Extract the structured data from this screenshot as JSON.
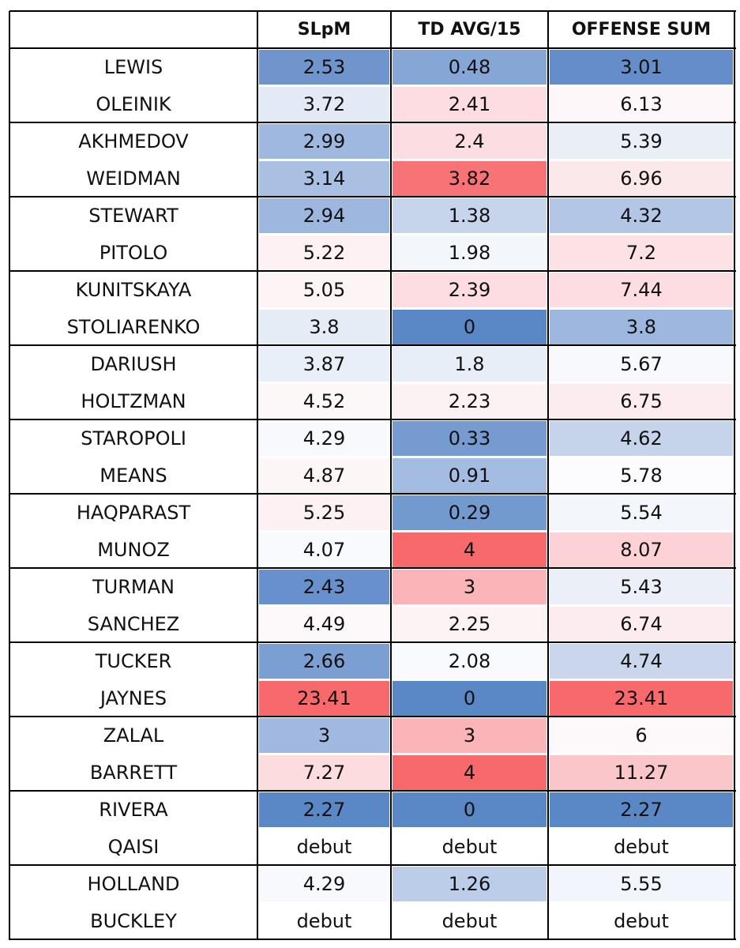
{
  "table": {
    "header": [
      "SLpM",
      "TD AVG/15",
      "OFFENSE SUM"
    ],
    "rows": [
      {
        "name": "LEWIS",
        "cells": [
          2.53,
          0.48,
          3.01
        ],
        "colors": [
          "#6f95cc",
          "#86a6d6",
          "#658dc9"
        ]
      },
      {
        "name": "OLEINIK",
        "cells": [
          3.72,
          2.41,
          6.13
        ],
        "colors": [
          "#e3eaf5",
          "#fddde2",
          "#fdf7f9"
        ]
      },
      {
        "name": "AKHMEDOV",
        "cells": [
          2.99,
          2.4,
          5.39
        ],
        "colors": [
          "#9fb8e0",
          "#fcdde1",
          "#e9eef7"
        ]
      },
      {
        "name": "WEIDMAN",
        "cells": [
          3.14,
          3.82,
          6.96
        ],
        "colors": [
          "#a9c0e2",
          "#f87376",
          "#fbe8eb"
        ]
      },
      {
        "name": "STEWART",
        "cells": [
          2.94,
          1.38,
          4.32
        ],
        "colors": [
          "#9db7df",
          "#c6d4ec",
          "#b3c6e5"
        ]
      },
      {
        "name": "PITOLO",
        "cells": [
          5.22,
          1.98,
          7.2
        ],
        "colors": [
          "#fdf1f3",
          "#f3f6fb",
          "#fce2e5"
        ]
      },
      {
        "name": "KUNITSKAYA",
        "cells": [
          5.05,
          2.39,
          7.44
        ],
        "colors": [
          "#fdf4f6",
          "#fddde1",
          "#fddde1"
        ]
      },
      {
        "name": "STOLIARENKO",
        "cells": [
          3.8,
          0,
          3.8
        ],
        "colors": [
          "#e5ecf6",
          "#5a87c6",
          "#9eb7df"
        ]
      },
      {
        "name": "DARIUSH",
        "cells": [
          3.87,
          1.8,
          5.67
        ],
        "colors": [
          "#e9eff8",
          "#e8eef7",
          "#f8f9fc"
        ]
      },
      {
        "name": "HOLTZMAN",
        "cells": [
          4.52,
          2.23,
          6.75
        ],
        "colors": [
          "#fcf7f9",
          "#fcf1f3",
          "#fcecef"
        ]
      },
      {
        "name": "STAROPOLI",
        "cells": [
          4.29,
          0.33,
          4.62
        ],
        "colors": [
          "#f8f9fc",
          "#759bd0",
          "#c5d3eb"
        ]
      },
      {
        "name": "MEANS",
        "cells": [
          4.87,
          0.91,
          5.78
        ],
        "colors": [
          "#fdf6f7",
          "#a4bce1",
          "#fcfcfe"
        ]
      },
      {
        "name": "HAQPARAST",
        "cells": [
          5.25,
          0.29,
          5.54
        ],
        "colors": [
          "#fdf1f3",
          "#729acf",
          "#f3f6fb"
        ]
      },
      {
        "name": "MUNOZ",
        "cells": [
          4.07,
          4,
          8.07
        ],
        "colors": [
          "#f9fafd",
          "#f8696b",
          "#fcd2d6"
        ]
      },
      {
        "name": "TURMAN",
        "cells": [
          2.43,
          3,
          5.43
        ],
        "colors": [
          "#6890cc",
          "#fbb4b8",
          "#eaeff8"
        ]
      },
      {
        "name": "SANCHEZ",
        "cells": [
          4.49,
          2.25,
          6.74
        ],
        "colors": [
          "#fdf8f9",
          "#fdf2f4",
          "#fdecef"
        ]
      },
      {
        "name": "TUCKER",
        "cells": [
          2.66,
          2.08,
          4.74
        ],
        "colors": [
          "#7c9fd3",
          "#f9fafd",
          "#c9d6ec"
        ]
      },
      {
        "name": "JAYNES",
        "cells": [
          23.41,
          0,
          23.41
        ],
        "colors": [
          "#f8696b",
          "#5a87c6",
          "#f8696b"
        ]
      },
      {
        "name": "ZALAL",
        "cells": [
          3,
          3,
          6
        ],
        "colors": [
          "#a1b9e0",
          "#fbb4b8",
          "#fdf8f9"
        ]
      },
      {
        "name": "BARRETT",
        "cells": [
          7.27,
          4,
          11.27
        ],
        "colors": [
          "#fcdcdf",
          "#f8696b",
          "#fbc6ca"
        ]
      },
      {
        "name": "RIVERA",
        "cells": [
          2.27,
          0,
          2.27
        ],
        "colors": [
          "#5a87c6",
          "#5a87c6",
          "#5a87c6"
        ]
      },
      {
        "name": "QAISI",
        "cells": [
          "debut",
          "debut",
          "debut"
        ],
        "colors": [
          "#ffffff",
          "#ffffff",
          "#ffffff"
        ]
      },
      {
        "name": "HOLLAND",
        "cells": [
          4.29,
          1.26,
          5.55
        ],
        "colors": [
          "#f8f9fc",
          "#bccdea",
          "#f2f5fb"
        ]
      },
      {
        "name": "BUCKLEY",
        "cells": [
          "debut",
          "debut",
          "debut"
        ],
        "colors": [
          "#ffffff",
          "#ffffff",
          "#ffffff"
        ]
      }
    ]
  }
}
